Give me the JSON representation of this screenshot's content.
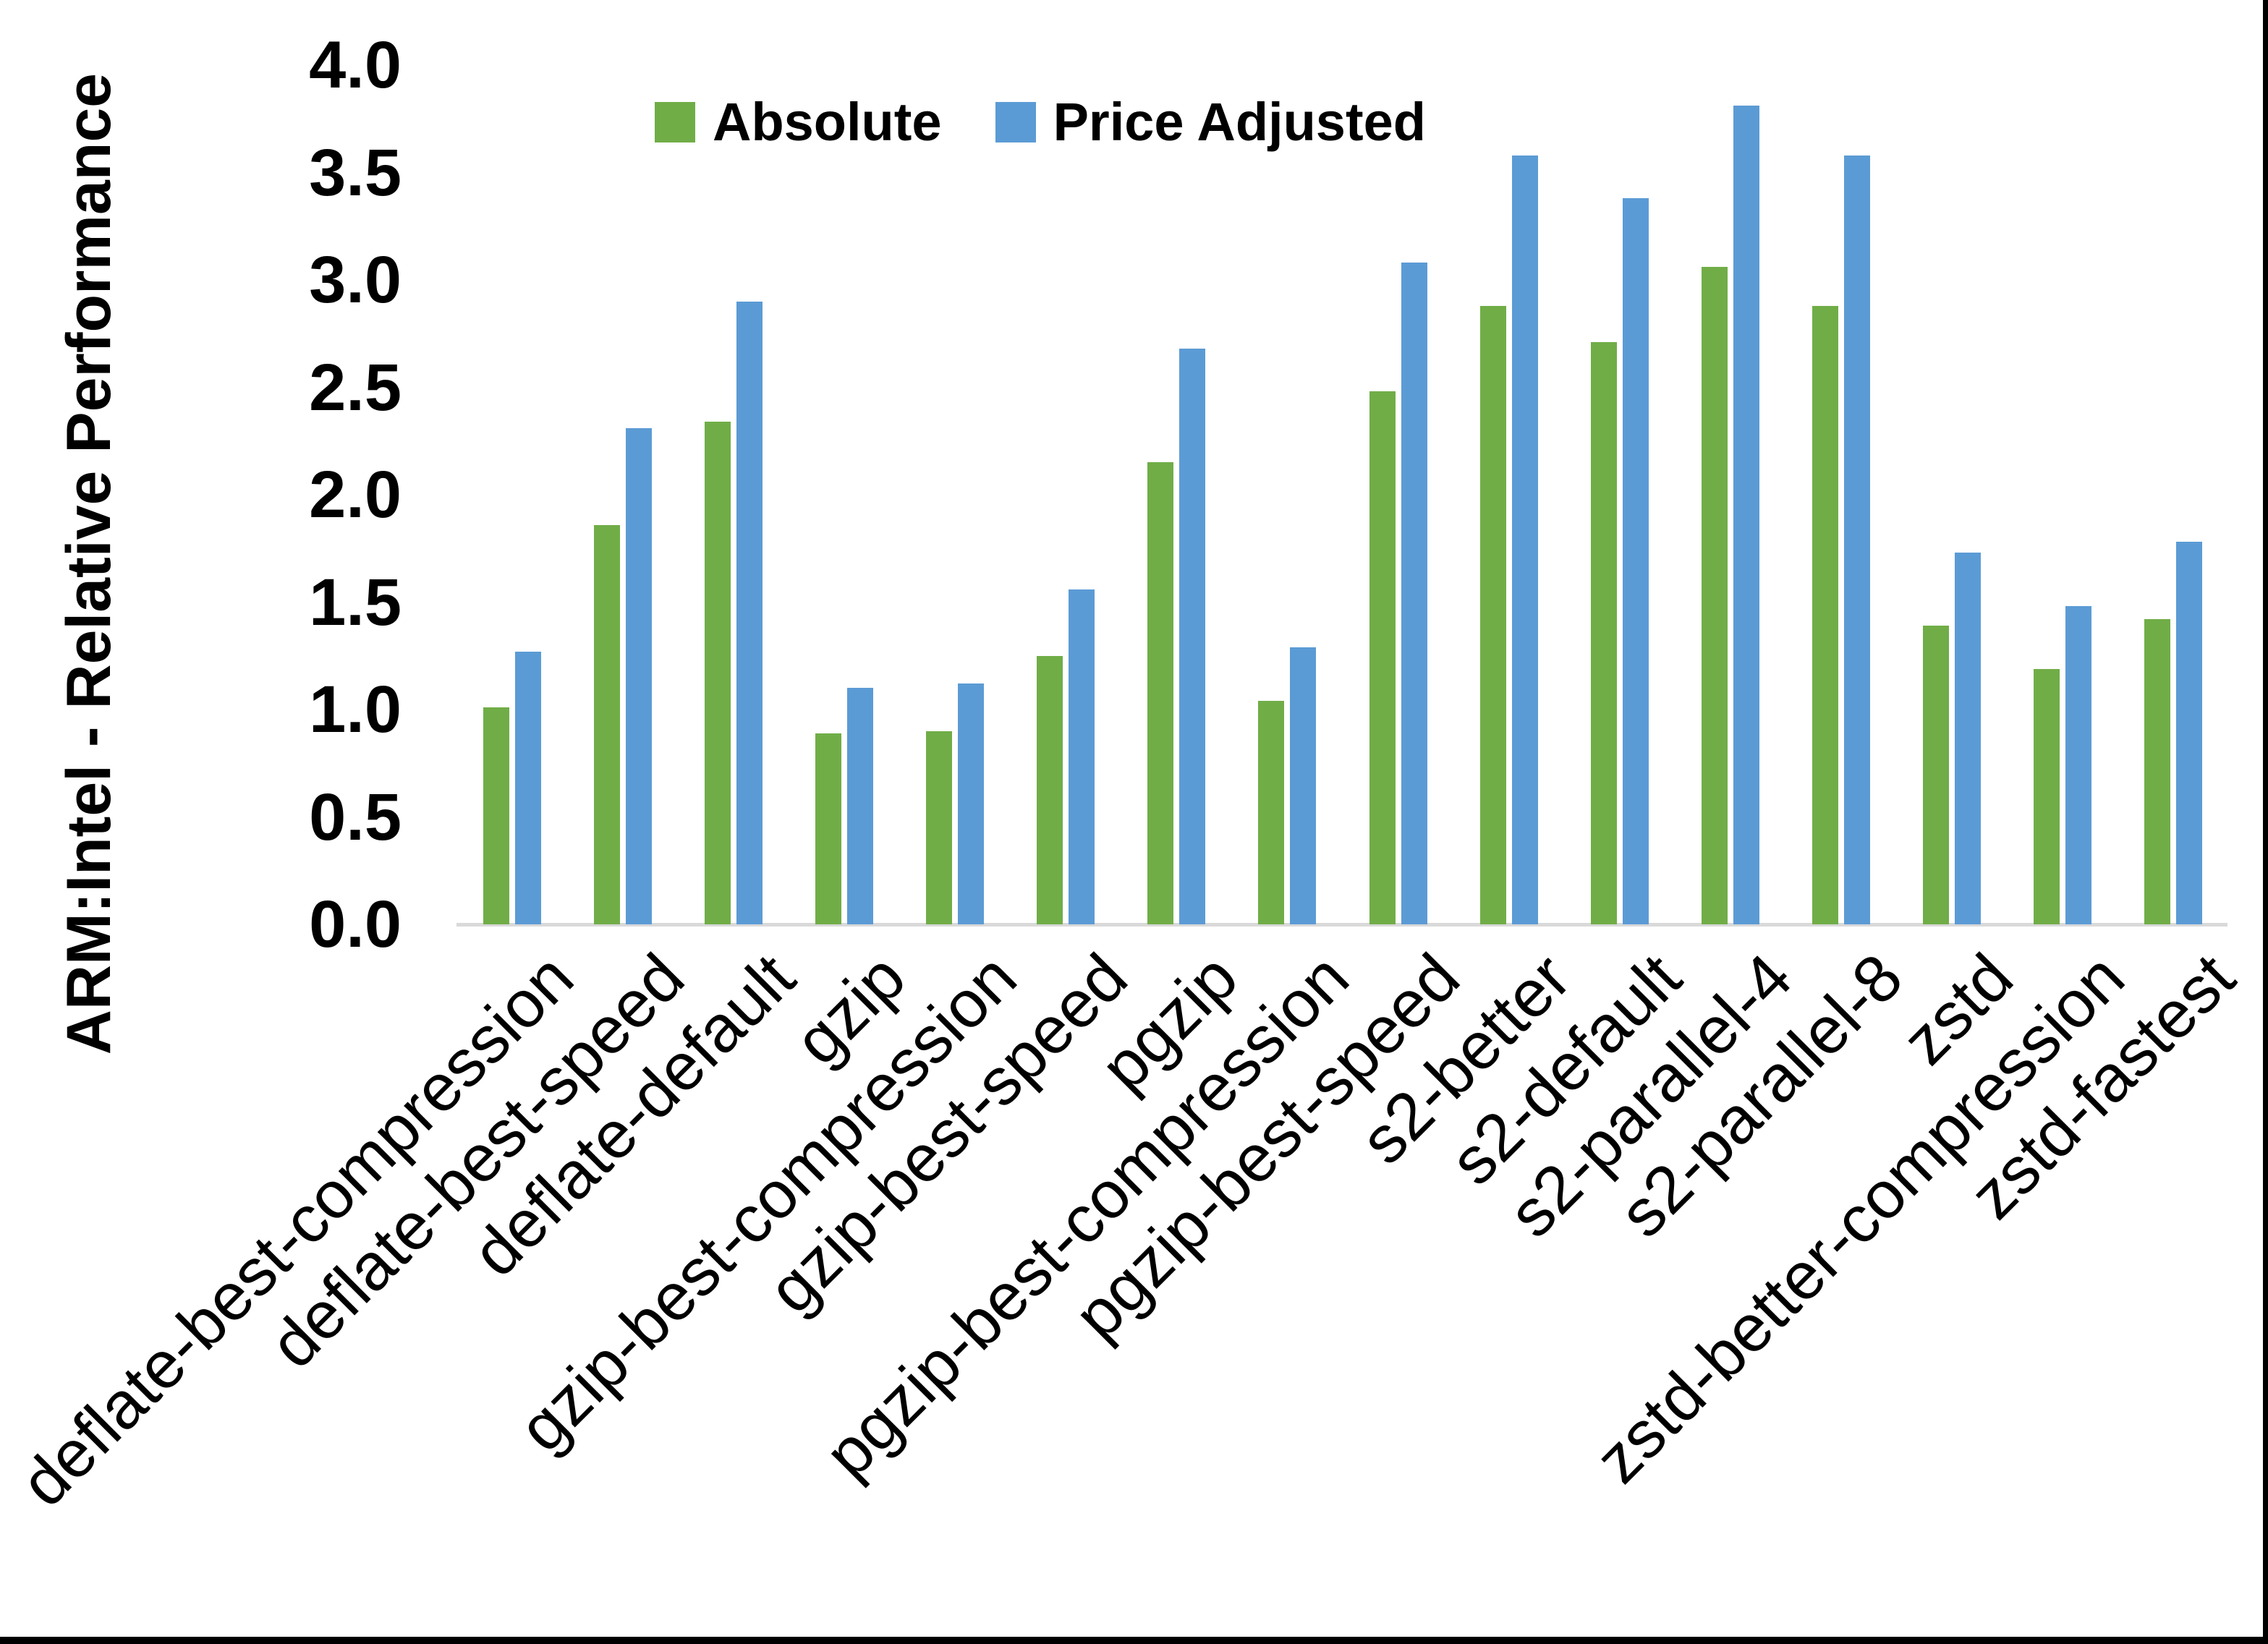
{
  "chart_data": {
    "type": "bar",
    "title": "",
    "xlabel": "",
    "ylabel": "ARM:Intel - Relative Performance",
    "ylim": [
      0.0,
      4.0
    ],
    "ytick_step": 0.5,
    "ytick_labels": [
      "0.0",
      "0.5",
      "1.0",
      "1.5",
      "2.0",
      "2.5",
      "3.0",
      "3.5",
      "4.0"
    ],
    "grid": false,
    "legend_position": "top-center",
    "axis_line_color": "#d9d9d9",
    "text_color": "#000000",
    "categories": [
      "deflate-best-compression",
      "deflate-best-speed",
      "deflate-default",
      "gzip",
      "gzip-best-compression",
      "gzip-best-speed",
      "pgzip",
      "pgzip-best-compression",
      "pgzip-best-speed",
      "s2-better",
      "s2-default",
      "s2-parallel-4",
      "s2-parallel-8",
      "zstd",
      "zstd-better-compression",
      "zstd-fastest"
    ],
    "series": [
      {
        "name": "Absolute",
        "color": "#70ad47",
        "values": [
          1.01,
          1.86,
          2.34,
          0.89,
          0.9,
          1.25,
          2.15,
          1.04,
          2.48,
          2.88,
          2.71,
          3.06,
          2.88,
          1.39,
          1.19,
          1.42
        ]
      },
      {
        "name": "Price Adjusted",
        "color": "#5b9bd5",
        "values": [
          1.27,
          2.31,
          2.9,
          1.1,
          1.12,
          1.56,
          2.68,
          1.29,
          3.08,
          3.58,
          3.38,
          3.81,
          3.58,
          1.73,
          1.48,
          1.78
        ]
      }
    ]
  }
}
